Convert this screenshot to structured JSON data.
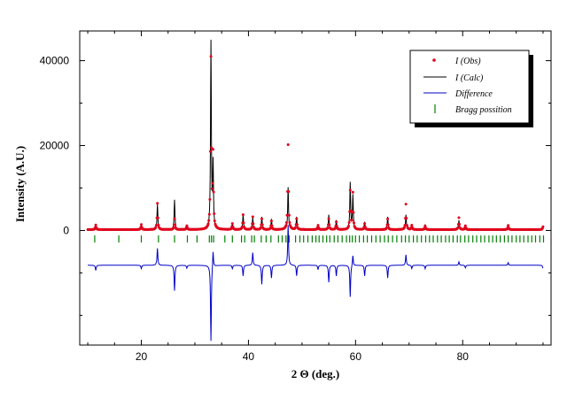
{
  "chart_data": {
    "type": "line",
    "title": "",
    "xlabel": "2 Θ (deg.)",
    "ylabel": "Intensity (A.U.)",
    "xlim": [
      8.5,
      96.5
    ],
    "ylim": [
      -27000,
      47000
    ],
    "x_ticks": [
      20,
      40,
      60,
      80
    ],
    "y_ticks": [
      0,
      20000,
      40000
    ],
    "grid": false,
    "legend_position": "top-right",
    "baselines": {
      "observed": 200,
      "difference": -8200,
      "bragg_marks": -2000
    },
    "colors": {
      "obs": "#e0001a",
      "calc": "#000000",
      "diff": "#0000c8",
      "bragg": "#008000"
    },
    "peaks": [
      {
        "x": 11.5,
        "calc": 1200,
        "obs": 1100,
        "diff": -1200
      },
      {
        "x": 20.0,
        "calc": 1300,
        "obs": 1200,
        "diff": -800
      },
      {
        "x": 23.0,
        "calc": 6000,
        "obs": 6200,
        "diff": 4000
      },
      {
        "x": 26.2,
        "calc": 7000,
        "obs": 2500,
        "diff": -6000
      },
      {
        "x": 28.5,
        "calc": 1000,
        "obs": 900,
        "diff": -700
      },
      {
        "x": 33.0,
        "calc": 44000,
        "obs": 40000,
        "diff": -18000
      },
      {
        "x": 33.4,
        "calc": 15000,
        "obs": 17000,
        "diff": 4000
      },
      {
        "x": 37.0,
        "calc": 1500,
        "obs": 1400,
        "diff": -800
      },
      {
        "x": 39.0,
        "calc": 3500,
        "obs": 3500,
        "diff": -2500
      },
      {
        "x": 40.8,
        "calc": 2800,
        "obs": 3000,
        "diff": 3000
      },
      {
        "x": 42.5,
        "calc": 3000,
        "obs": 2500,
        "diff": -4500
      },
      {
        "x": 44.3,
        "calc": 2500,
        "obs": 2000,
        "diff": -3000
      },
      {
        "x": 47.4,
        "calc": 10000,
        "obs": 20000,
        "diff": 9500
      },
      {
        "x": 49.0,
        "calc": 3000,
        "obs": 2500,
        "diff": -2500
      },
      {
        "x": 53.0,
        "calc": 1200,
        "obs": 1000,
        "diff": -1000
      },
      {
        "x": 55.0,
        "calc": 3500,
        "obs": 2500,
        "diff": -4000
      },
      {
        "x": 56.4,
        "calc": 2200,
        "obs": 1800,
        "diff": -2500
      },
      {
        "x": 59.0,
        "calc": 11000,
        "obs": 9000,
        "diff": -7500
      },
      {
        "x": 59.5,
        "calc": 8000,
        "obs": 8500,
        "diff": 2500
      },
      {
        "x": 61.7,
        "calc": 1800,
        "obs": 1400,
        "diff": -2500
      },
      {
        "x": 66.0,
        "calc": 3000,
        "obs": 2500,
        "diff": -3000
      },
      {
        "x": 69.4,
        "calc": 3500,
        "obs": 6000,
        "diff": 2500
      },
      {
        "x": 70.5,
        "calc": 1200,
        "obs": 1000,
        "diff": -800
      },
      {
        "x": 73.0,
        "calc": 1000,
        "obs": 900,
        "diff": -800
      },
      {
        "x": 79.3,
        "calc": 2200,
        "obs": 2800,
        "diff": 800
      },
      {
        "x": 80.5,
        "calc": 1000,
        "obs": 900,
        "diff": -600
      },
      {
        "x": 88.5,
        "calc": 900,
        "obs": 1000,
        "diff": 600
      },
      {
        "x": 95.0,
        "calc": 800,
        "obs": 700,
        "diff": -700
      }
    ],
    "bragg_positions": [
      11.3,
      15.8,
      20.0,
      23.2,
      26.2,
      28.6,
      30.4,
      32.7,
      33.1,
      33.5,
      35.6,
      37.0,
      38.7,
      39.3,
      40.6,
      41.1,
      42.4,
      43.3,
      44.2,
      45.6,
      46.3,
      47.0,
      47.6,
      48.8,
      49.6,
      50.3,
      51.1,
      51.9,
      52.6,
      53.2,
      53.9,
      54.6,
      55.2,
      56.0,
      56.7,
      57.5,
      58.3,
      58.9,
      59.4,
      60.0,
      60.7,
      61.5,
      62.2,
      63.0,
      63.8,
      64.6,
      65.4,
      66.1,
      66.9,
      67.7,
      68.6,
      69.3,
      70.0,
      70.8,
      71.5,
      72.3,
      73.1,
      73.8,
      74.5,
      75.3,
      76.0,
      76.8,
      77.5,
      78.2,
      79.0,
      79.6,
      80.4,
      81.1,
      81.9,
      82.6,
      83.4,
      84.1,
      84.9,
      85.6,
      86.3,
      87.0,
      87.8,
      88.5,
      89.2,
      90.0,
      90.7,
      91.4,
      92.2,
      92.9,
      93.6,
      94.4,
      95.1
    ]
  },
  "legend": {
    "items": [
      {
        "label": "I (Obs)",
        "marker": "dot"
      },
      {
        "label": "I (Calc)",
        "marker": "line-black"
      },
      {
        "label": "Difference",
        "marker": "line-blue"
      },
      {
        "label": "Bragg possition",
        "marker": "tick-green"
      }
    ]
  }
}
